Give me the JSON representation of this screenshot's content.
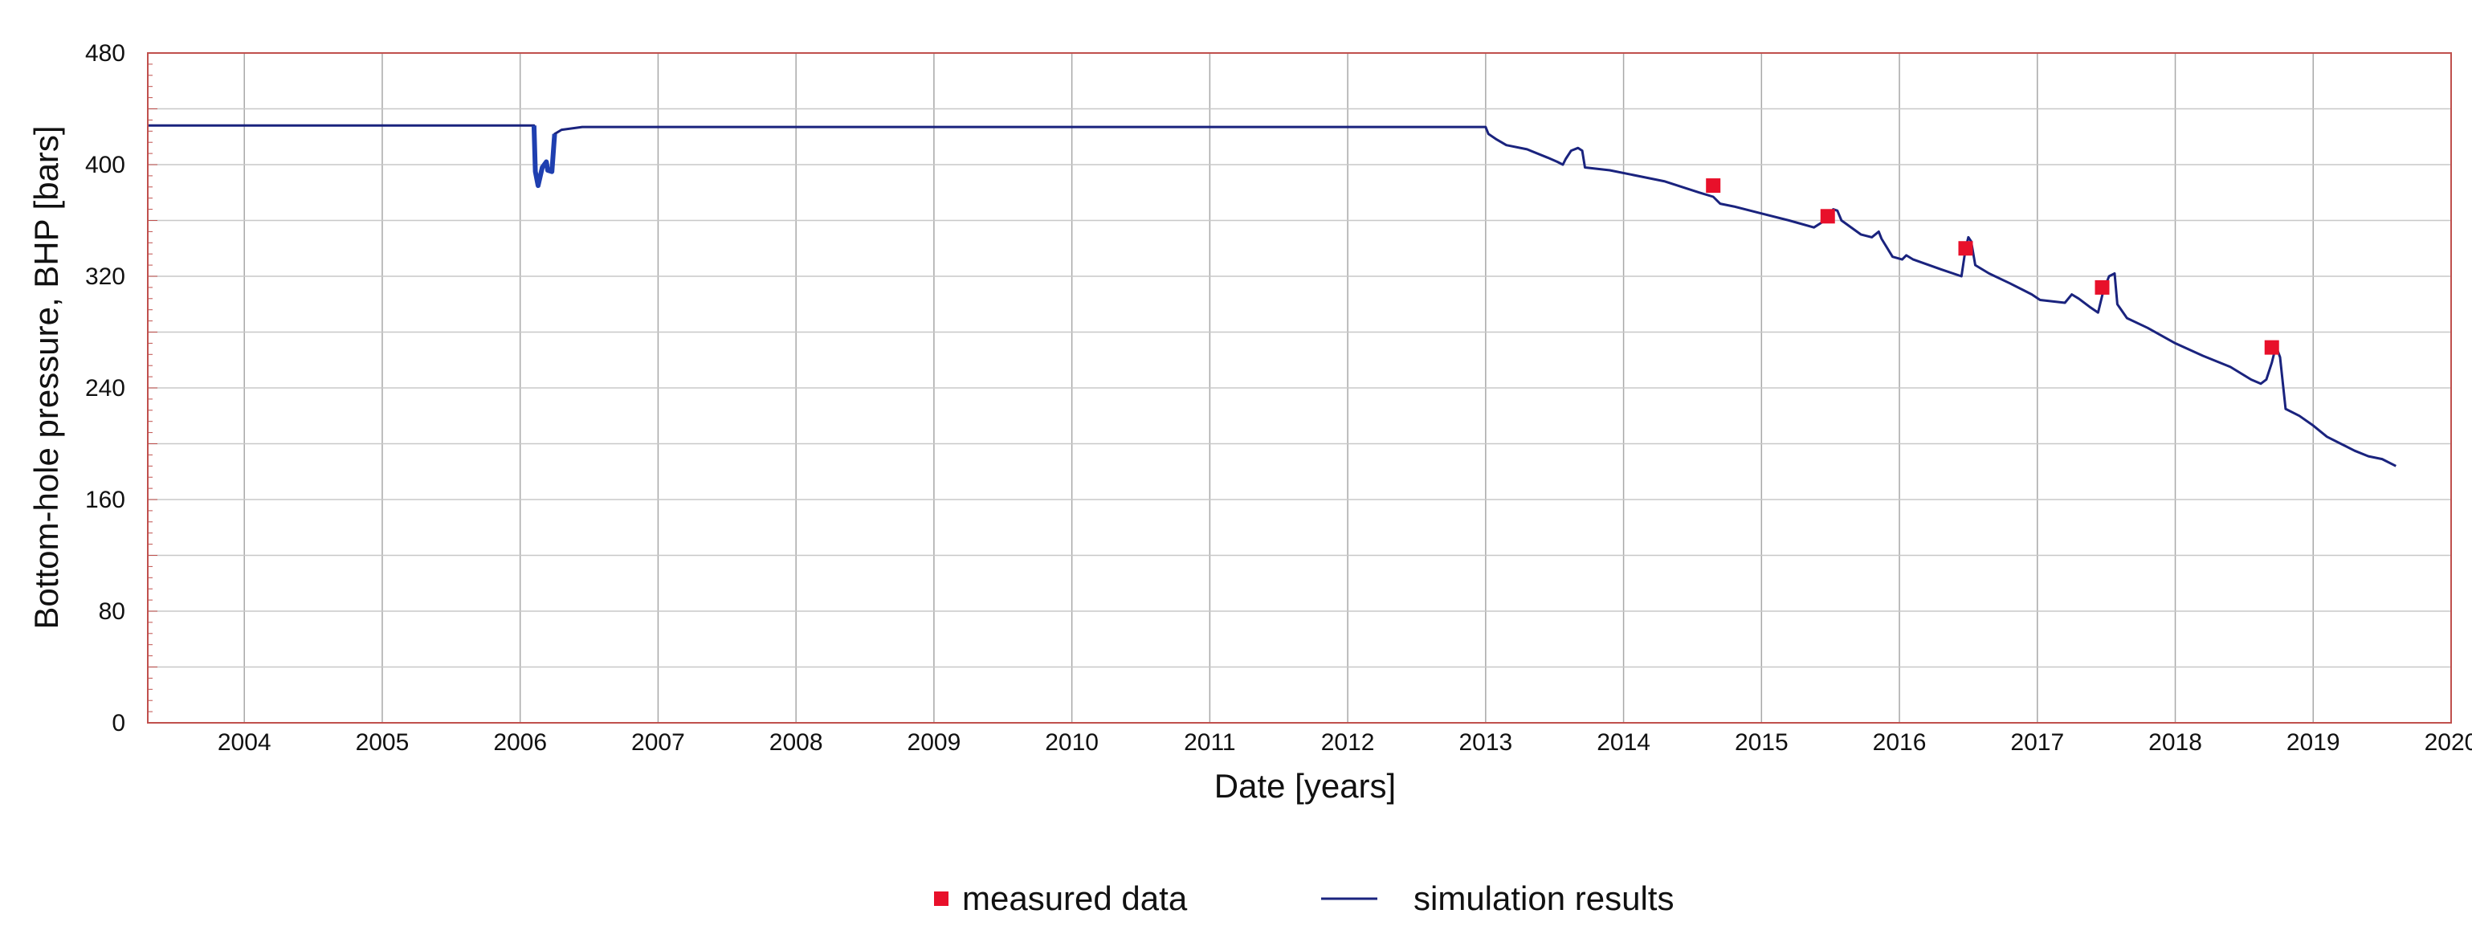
{
  "chart_data": {
    "type": "line",
    "title": "",
    "xlabel": "Date [years]",
    "ylabel": "Bottom-hole pressure, BHP [bars]",
    "xlim": [
      2003.3,
      2020.0
    ],
    "ylim": [
      0,
      480
    ],
    "x_ticks": [
      2004,
      2005,
      2006,
      2007,
      2008,
      2009,
      2010,
      2011,
      2012,
      2013,
      2014,
      2015,
      2016,
      2017,
      2018,
      2019,
      2020
    ],
    "y_ticks": [
      0,
      80,
      160,
      240,
      320,
      400,
      480
    ],
    "x_tick_labels": [
      "2004",
      "2005",
      "2006",
      "2007",
      "2008",
      "2009",
      "2010",
      "2011",
      "2012",
      "2013",
      "2014",
      "2015",
      "2016",
      "2017",
      "2018",
      "2019",
      "2020"
    ],
    "y_tick_labels": [
      "0",
      "80",
      "160",
      "240",
      "320",
      "400",
      "480"
    ],
    "grid": true,
    "legend_position": "bottom-center",
    "colors": {
      "simulation": "#1a237e",
      "simulation_dip": "#1f3fb0",
      "measured": "#e8102a",
      "frame": "#c0504d",
      "grid": "#c8c8c8"
    },
    "series": [
      {
        "name": "simulation results",
        "kind": "line",
        "points": [
          [
            2003.3,
            428
          ],
          [
            2006.1,
            428
          ],
          [
            2006.11,
            395
          ],
          [
            2006.13,
            385
          ],
          [
            2006.16,
            398
          ],
          [
            2006.19,
            402
          ],
          [
            2006.2,
            396
          ],
          [
            2006.23,
            395
          ],
          [
            2006.25,
            422
          ],
          [
            2006.3,
            425
          ],
          [
            2006.45,
            427
          ],
          [
            2006.6,
            427
          ],
          [
            2013.0,
            427
          ],
          [
            2013.02,
            422
          ],
          [
            2013.08,
            418
          ],
          [
            2013.15,
            414
          ],
          [
            2013.3,
            411
          ],
          [
            2013.45,
            405
          ],
          [
            2013.52,
            402
          ],
          [
            2013.56,
            400
          ],
          [
            2013.58,
            404
          ],
          [
            2013.62,
            410
          ],
          [
            2013.67,
            412
          ],
          [
            2013.7,
            410
          ],
          [
            2013.72,
            398
          ],
          [
            2013.9,
            396
          ],
          [
            2014.05,
            393
          ],
          [
            2014.3,
            388
          ],
          [
            2014.55,
            380
          ],
          [
            2014.65,
            377
          ],
          [
            2014.7,
            372
          ],
          [
            2014.8,
            370
          ],
          [
            2015.0,
            365
          ],
          [
            2015.2,
            360
          ],
          [
            2015.38,
            355
          ],
          [
            2015.46,
            360
          ],
          [
            2015.52,
            368
          ],
          [
            2015.55,
            367
          ],
          [
            2015.58,
            360
          ],
          [
            2015.72,
            350
          ],
          [
            2015.8,
            348
          ],
          [
            2015.85,
            352
          ],
          [
            2015.87,
            347
          ],
          [
            2015.95,
            334
          ],
          [
            2016.02,
            332
          ],
          [
            2016.05,
            335
          ],
          [
            2016.1,
            332
          ],
          [
            2016.3,
            325
          ],
          [
            2016.45,
            320
          ],
          [
            2016.48,
            340
          ],
          [
            2016.5,
            348
          ],
          [
            2016.52,
            345
          ],
          [
            2016.55,
            328
          ],
          [
            2016.65,
            322
          ],
          [
            2016.8,
            315
          ],
          [
            2016.9,
            310
          ],
          [
            2016.96,
            307
          ],
          [
            2017.02,
            303
          ],
          [
            2017.2,
            301
          ],
          [
            2017.25,
            307
          ],
          [
            2017.3,
            304
          ],
          [
            2017.38,
            298
          ],
          [
            2017.44,
            294
          ],
          [
            2017.48,
            310
          ],
          [
            2017.52,
            320
          ],
          [
            2017.56,
            322
          ],
          [
            2017.58,
            300
          ],
          [
            2017.65,
            290
          ],
          [
            2017.8,
            283
          ],
          [
            2018.0,
            272
          ],
          [
            2018.2,
            263
          ],
          [
            2018.4,
            255
          ],
          [
            2018.55,
            246
          ],
          [
            2018.62,
            243
          ],
          [
            2018.66,
            246
          ],
          [
            2018.7,
            258
          ],
          [
            2018.73,
            270
          ],
          [
            2018.76,
            262
          ],
          [
            2018.8,
            225
          ],
          [
            2018.9,
            220
          ],
          [
            2019.0,
            213
          ],
          [
            2019.1,
            205
          ],
          [
            2019.2,
            200
          ],
          [
            2019.3,
            195
          ],
          [
            2019.4,
            191
          ],
          [
            2019.5,
            189
          ],
          [
            2019.6,
            184
          ]
        ]
      },
      {
        "name": "measured data",
        "kind": "scatter",
        "points": [
          [
            2014.65,
            385
          ],
          [
            2015.48,
            363
          ],
          [
            2016.48,
            340
          ],
          [
            2017.47,
            312
          ],
          [
            2018.7,
            269
          ]
        ]
      }
    ]
  }
}
